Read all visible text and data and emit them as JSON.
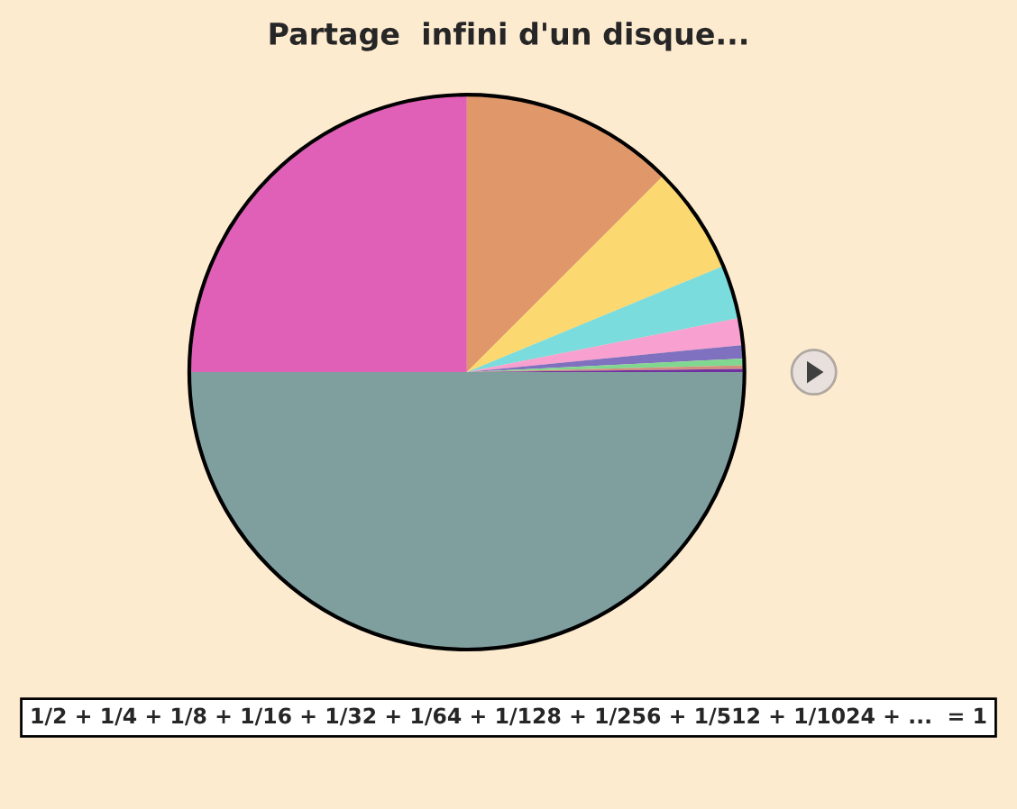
{
  "chart_data": {
    "type": "pie",
    "title": "Partage  infini d'un disque...",
    "categories": [
      null,
      null,
      null,
      null,
      null,
      null,
      null,
      null,
      null,
      null
    ],
    "values": [
      50,
      25,
      12.5,
      6.25,
      3.13,
      1.56,
      0.78,
      0.39,
      0.2,
      0.19
    ],
    "colors": [
      "#7f9e9e",
      "#e060b8",
      "#e0986a",
      "#fcd870",
      "#7adcdc",
      "#f8a0d0",
      "#8070c0",
      "#80d890",
      "#d09080",
      "#7030a0"
    ],
    "annotations": [
      "1/2 + 1/4 + 1/8 + 1/16 + 1/32 + 1/64 + 1/128 + 1/256 + 1/512 + 1/1024 + ...  = 1"
    ],
    "legend": false
  }
}
